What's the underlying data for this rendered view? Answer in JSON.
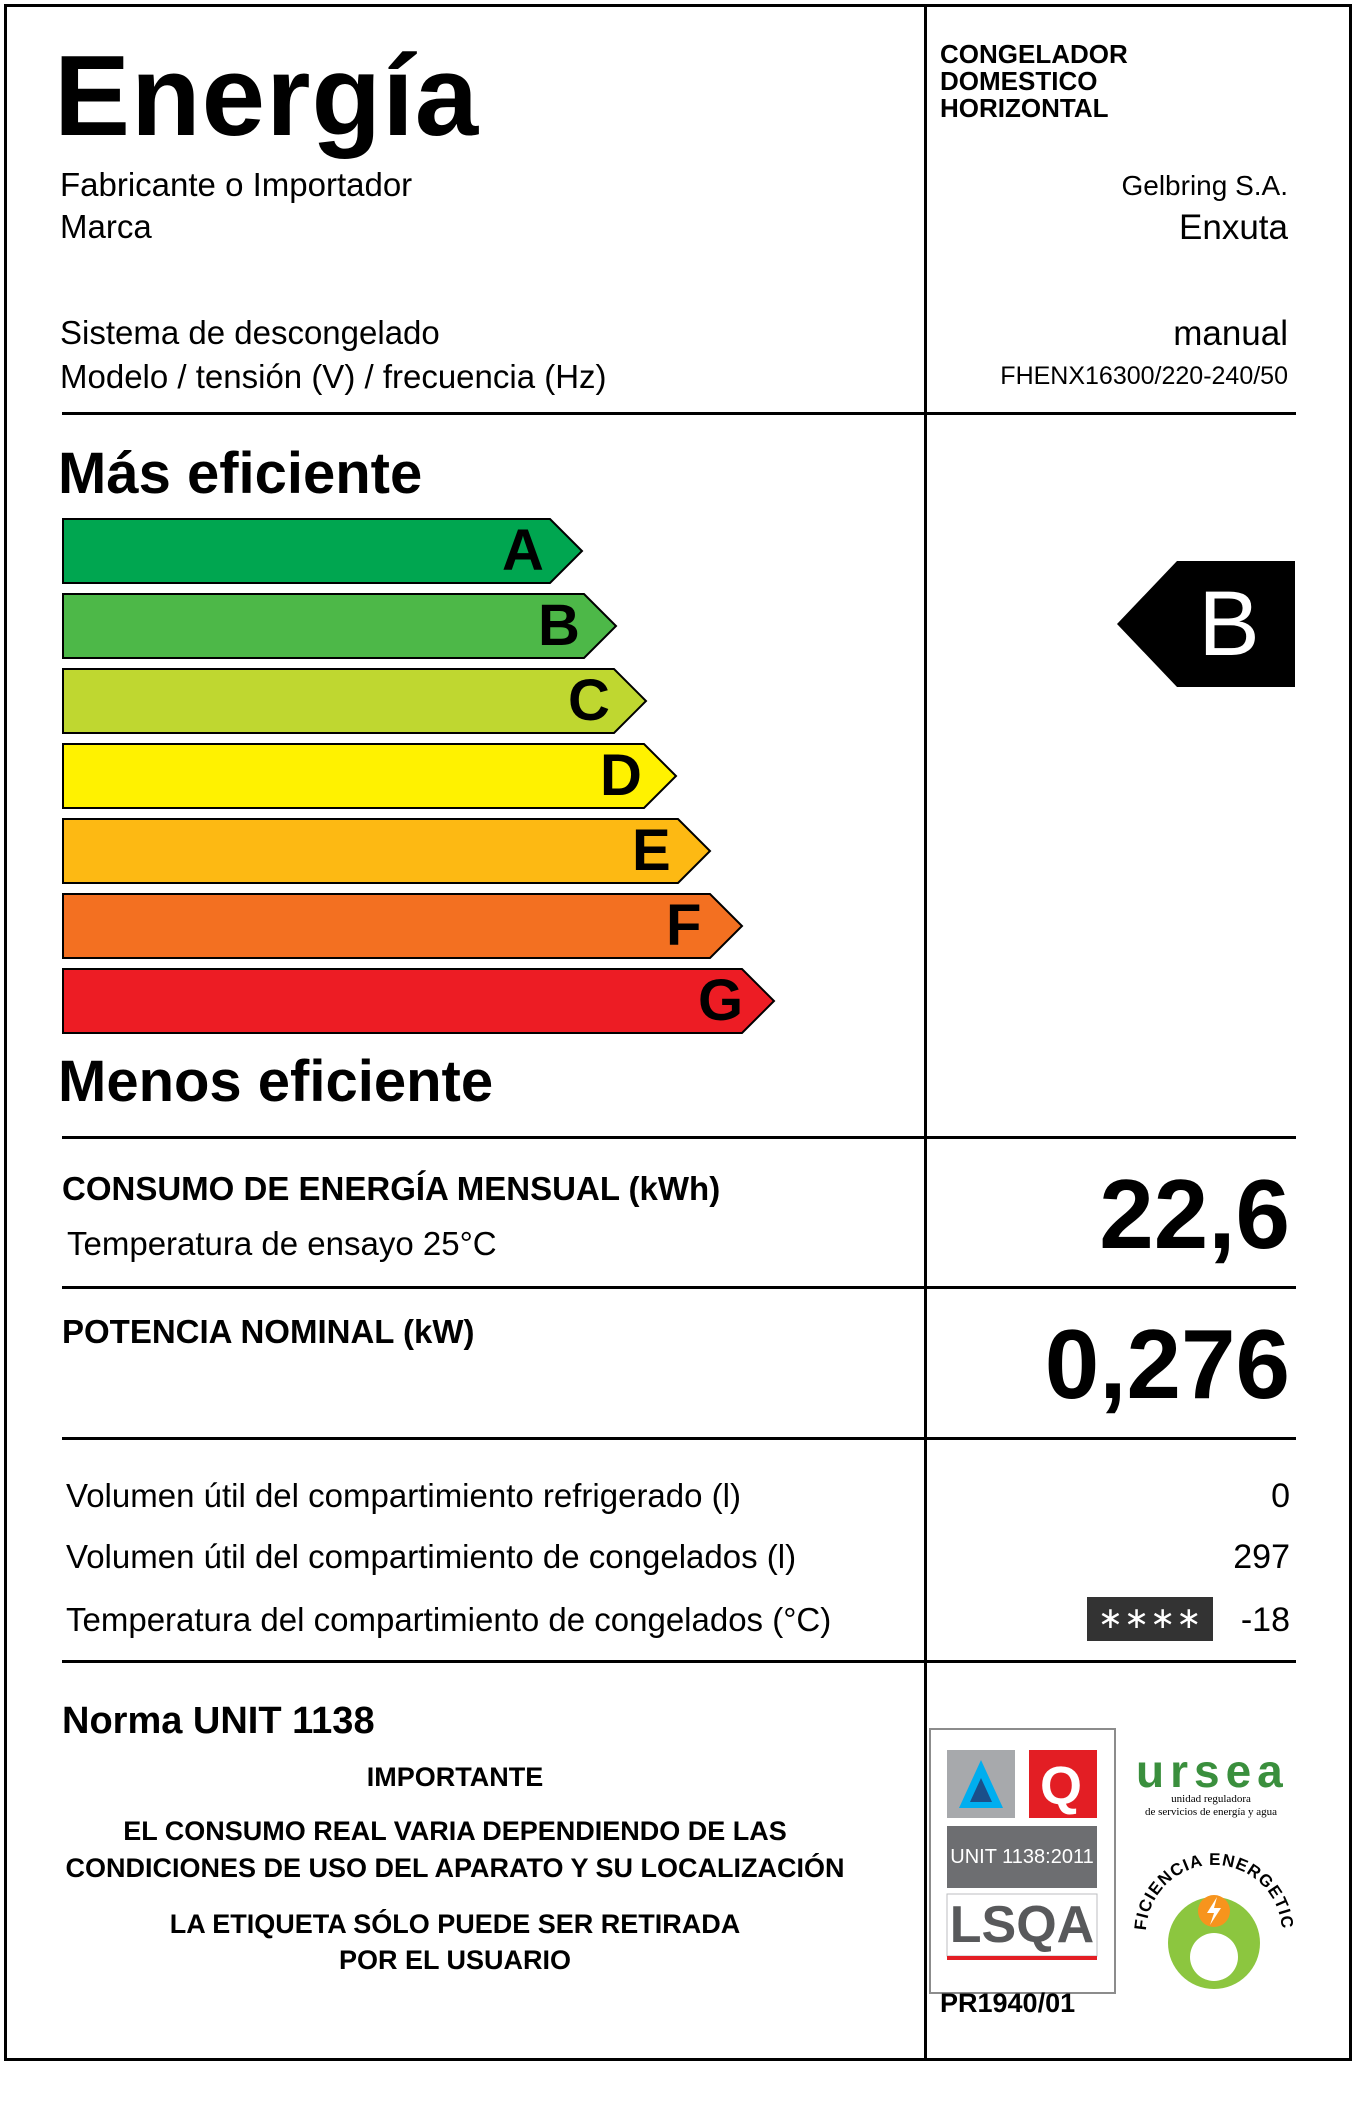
{
  "header": {
    "title": "Energía",
    "appliance_type_lines": [
      "CONGELADOR",
      "DOMESTICO",
      "HORIZONTAL"
    ]
  },
  "fields": {
    "manufacturer_label": "Fabricante o Importador",
    "manufacturer_value": "Gelbring S.A.",
    "brand_label": "Marca",
    "brand_value": "Enxuta",
    "defrost_label": "Sistema de descongelado",
    "defrost_value": "manual",
    "model_label": "Modelo / tensión (V) / frecuencia (Hz)",
    "model_value": "FHENX16300/220-240/50"
  },
  "scale": {
    "top_label": "Más eficiente",
    "bottom_label": "Menos eficiente",
    "classes": [
      {
        "letter": "A",
        "color": "#00a650"
      },
      {
        "letter": "B",
        "color": "#4db848"
      },
      {
        "letter": "C",
        "color": "#bfd730"
      },
      {
        "letter": "D",
        "color": "#fff200"
      },
      {
        "letter": "E",
        "color": "#fdb913"
      },
      {
        "letter": "F",
        "color": "#f37021"
      },
      {
        "letter": "G",
        "color": "#ed1c24"
      }
    ],
    "rating": "B"
  },
  "consumption": {
    "label": "CONSUMO DE ENERGÍA MENSUAL (kWh)",
    "sublabel": "Temperatura de ensayo 25°C",
    "value": "22,6"
  },
  "power": {
    "label": "POTENCIA NOMINAL (kW)",
    "value": "0,276"
  },
  "volumes": [
    {
      "label": "Volumen útil del compartimiento refrigerado (l)",
      "value": "0"
    },
    {
      "label": "Volumen útil del compartimiento de congelados (l)",
      "value": "297"
    },
    {
      "label": "Temperatura del compartimiento de congelados (°C)",
      "value": "-18",
      "star_rating": "∗∗∗∗"
    }
  ],
  "footer": {
    "norm": "Norma UNIT 1138",
    "important": "IMPORTANTE",
    "notice_line1": "EL CONSUMO REAL VARIA DEPENDIENDO DE LAS",
    "notice_line2": "CONDICIONES DE USO DEL APARATO Y SU LOCALIZACIÓN",
    "removal_line1": "LA ETIQUETA SÓLO PUEDE SER RETIRADA",
    "removal_line2": "POR EL USUARIO",
    "cert_standard": "UNIT 1138:2011",
    "cert_name": "LSQA",
    "cert_q": "Q",
    "cert_code": "PR1940/01",
    "ursea_name": "ursea",
    "ursea_subtitle_line1": "unidad reguladora",
    "ursea_subtitle_line2": "de servicios de energía y agua",
    "seal_text": "EFICIENCIA ENERGETICA"
  }
}
